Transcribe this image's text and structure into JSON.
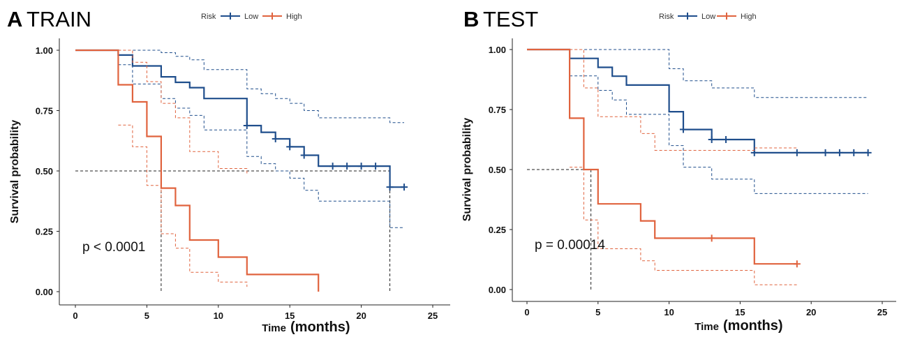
{
  "chart_data": [
    {
      "type": "line",
      "panel": "A",
      "title": "TRAIN",
      "legend_title": "Risk",
      "legend_position": "top",
      "xlabel": "Time",
      "xlabel_unit": "(months)",
      "ylabel": "Survival probability",
      "xlim": [
        0,
        25
      ],
      "ylim": [
        0,
        1
      ],
      "xticks": [
        "0",
        "5",
        "10",
        "15",
        "20",
        "25"
      ],
      "yticks": [
        "0.00",
        "0.25",
        "0.50",
        "0.75",
        "1.00"
      ],
      "p_value": "p < 0.0001",
      "median_line_y": 0.5,
      "median_drops_x": [
        6,
        22
      ],
      "series": [
        {
          "name": "Low",
          "color": "#1f4e8c",
          "step_x": [
            0,
            3,
            4,
            6,
            7,
            8,
            9,
            12,
            13,
            14,
            15,
            16,
            17,
            22,
            23
          ],
          "step_y": [
            1.0,
            0.98,
            0.935,
            0.89,
            0.867,
            0.845,
            0.8,
            0.688,
            0.66,
            0.633,
            0.6,
            0.565,
            0.52,
            0.433,
            0.433
          ],
          "upper_x": [
            3,
            4,
            6,
            7,
            8,
            9,
            12,
            13,
            14,
            15,
            16,
            17,
            22,
            23
          ],
          "upper_y": [
            1.0,
            1.0,
            0.99,
            0.975,
            0.96,
            0.92,
            0.84,
            0.82,
            0.8,
            0.78,
            0.75,
            0.72,
            0.7,
            0.7
          ],
          "lower_x": [
            3,
            4,
            6,
            7,
            8,
            9,
            12,
            13,
            14,
            15,
            16,
            17,
            22,
            23
          ],
          "lower_y": [
            0.94,
            0.86,
            0.8,
            0.76,
            0.73,
            0.67,
            0.56,
            0.53,
            0.5,
            0.47,
            0.42,
            0.375,
            0.265,
            0.265
          ],
          "censor_x": [
            12,
            14,
            15,
            16,
            18,
            19,
            20,
            21,
            22,
            23
          ],
          "censor_y": [
            0.688,
            0.633,
            0.6,
            0.565,
            0.52,
            0.52,
            0.52,
            0.52,
            0.433,
            0.433
          ]
        },
        {
          "name": "High",
          "color": "#e0633e",
          "step_x": [
            0,
            3,
            4,
            5,
            6,
            7,
            8,
            10,
            12,
            17
          ],
          "step_y": [
            1.0,
            0.857,
            0.786,
            0.643,
            0.429,
            0.357,
            0.214,
            0.143,
            0.071,
            0.0
          ],
          "upper_x": [
            3,
            4,
            5,
            6,
            7,
            8,
            10,
            12
          ],
          "upper_y": [
            1.0,
            0.95,
            0.87,
            0.78,
            0.72,
            0.58,
            0.51,
            0.49
          ],
          "lower_x": [
            3,
            4,
            5,
            6,
            7,
            8,
            10,
            12
          ],
          "lower_y": [
            0.69,
            0.6,
            0.44,
            0.24,
            0.18,
            0.08,
            0.04,
            0.02
          ],
          "censor_x": [],
          "censor_y": []
        }
      ]
    },
    {
      "type": "line",
      "panel": "B",
      "title": "TEST",
      "legend_title": "Risk",
      "legend_position": "top",
      "xlabel": "Time",
      "xlabel_unit": "(months)",
      "ylabel": "Survival probability",
      "xlim": [
        0,
        25
      ],
      "ylim": [
        0,
        1
      ],
      "xticks": [
        "0",
        "5",
        "10",
        "15",
        "20",
        "25"
      ],
      "yticks": [
        "0.00",
        "0.25",
        "0.50",
        "0.75",
        "1.00"
      ],
      "p_value": "p = 0.00014",
      "median_line_y": 0.5,
      "median_drops_x": [
        4.5
      ],
      "series": [
        {
          "name": "Low",
          "color": "#1f4e8c",
          "step_x": [
            0,
            3,
            5,
            6,
            7,
            10,
            11,
            13,
            16,
            24
          ],
          "step_y": [
            1.0,
            0.963,
            0.926,
            0.889,
            0.852,
            0.741,
            0.667,
            0.625,
            0.57,
            0.57
          ],
          "upper_x": [
            3,
            10,
            11,
            13,
            16,
            24
          ],
          "upper_y": [
            1.0,
            0.92,
            0.87,
            0.84,
            0.8,
            0.8
          ],
          "lower_x": [
            3,
            5,
            6,
            7,
            10,
            11,
            13,
            16,
            24
          ],
          "lower_y": [
            0.89,
            0.83,
            0.79,
            0.73,
            0.6,
            0.51,
            0.46,
            0.4,
            0.4
          ],
          "censor_x": [
            11,
            13,
            14,
            16,
            19,
            21,
            22,
            23,
            24
          ],
          "censor_y": [
            0.667,
            0.625,
            0.625,
            0.57,
            0.57,
            0.57,
            0.57,
            0.57,
            0.57
          ]
        },
        {
          "name": "High",
          "color": "#e0633e",
          "step_x": [
            0,
            3,
            4,
            5,
            8,
            9,
            16,
            19
          ],
          "step_y": [
            1.0,
            0.714,
            0.5,
            0.357,
            0.286,
            0.214,
            0.107,
            0.107
          ],
          "upper_x": [
            3,
            4,
            5,
            8,
            9,
            16,
            19
          ],
          "upper_y": [
            1.0,
            0.84,
            0.72,
            0.65,
            0.58,
            0.59,
            0.59
          ],
          "lower_x": [
            3,
            4,
            5,
            8,
            9,
            16,
            19
          ],
          "lower_y": [
            0.51,
            0.29,
            0.17,
            0.12,
            0.08,
            0.02,
            0.02
          ],
          "censor_x": [
            13,
            19
          ],
          "censor_y": [
            0.214,
            0.107
          ]
        }
      ]
    }
  ]
}
